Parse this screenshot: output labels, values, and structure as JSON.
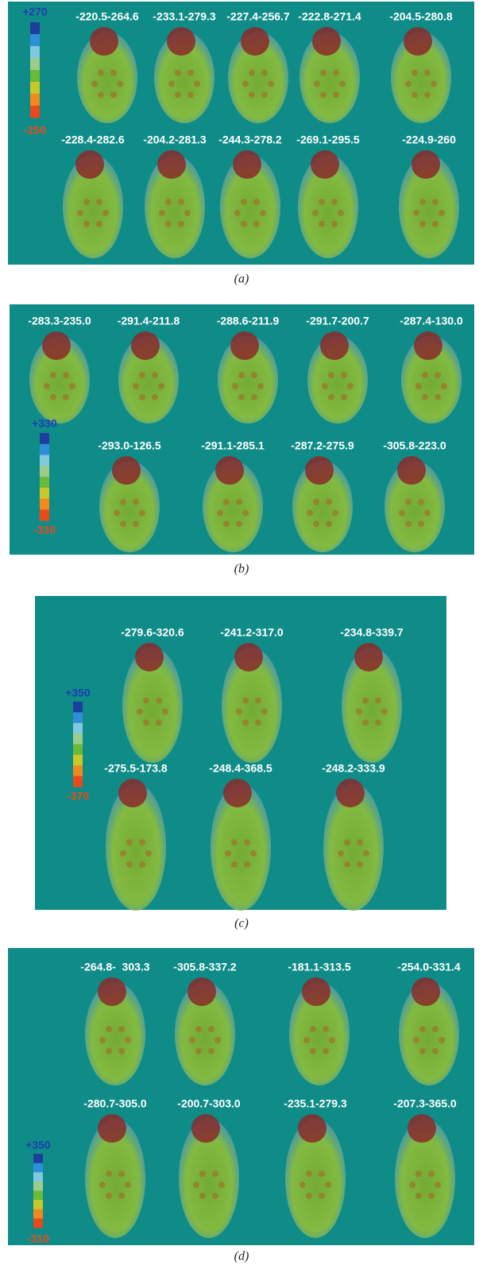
{
  "panels": [
    {
      "caption": "(a)",
      "scale": {
        "max": "+270",
        "min": "-250"
      },
      "rows": [
        [
          "-220.5-264.6",
          "-233.1-279.3",
          "-227.4-256.7",
          "-222.8-271.4",
          "-204.5-280.8"
        ],
        [
          "-228.4-282.6",
          "-204.2-281.3",
          "-244.3-278.2",
          "-269.1-295.5",
          "-224.9-260"
        ]
      ]
    },
    {
      "caption": "(b)",
      "scale": {
        "max": "+330",
        "min": "-330"
      },
      "rows": [
        [
          "-283.3-235.0",
          "-291.4-211.8",
          "-288.6-211.9",
          "-291.7-200.7",
          "-287.4-130.0"
        ],
        [
          "-293.0-126.5",
          "-291.1-285.1",
          "-287.2-275.9",
          "-305.8-223.0"
        ]
      ]
    },
    {
      "caption": "(c)",
      "scale": {
        "max": "+350",
        "min": "-370"
      },
      "rows": [
        [
          "-279.6-320.6",
          "-241.2-317.0",
          "-234.8-339.7"
        ],
        [
          "-275.5-173.8",
          "-248.4-368.5",
          "-248.2-333.9"
        ]
      ]
    },
    {
      "caption": "(d)",
      "scale": {
        "max": "+350",
        "min": "-310"
      },
      "rows": [
        [
          "-264.8-  303.3",
          "-305.8-337.2",
          "-181.1-313.5",
          "-254.0-331.4"
        ],
        [
          "-280.7-305.0",
          "-200.7-303.0",
          "-235.1-279.3",
          "-207.3-365.0"
        ]
      ]
    }
  ]
}
